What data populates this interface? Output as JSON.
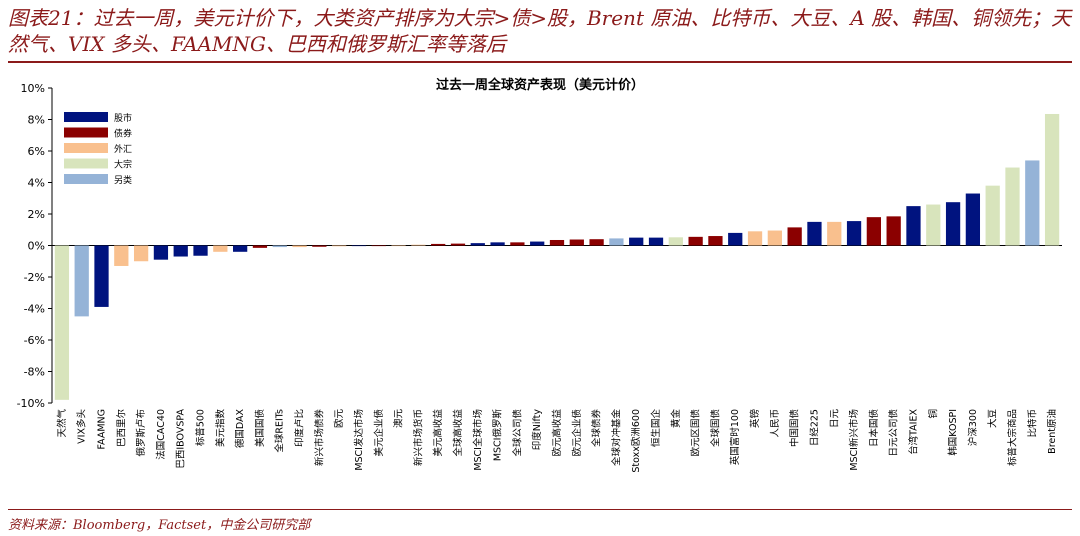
{
  "header": {
    "caption": "图表21：过去一周，美元计价下，大类资产排序为大宗>债>股，Brent 原油、比特币、大豆、A 股、韩国、铜领先；天然气、VIX 多头、FAAMNG、巴西和俄罗斯汇率等落后"
  },
  "footer": {
    "source": "资料来源：Bloomberg，Factset，中金公司研究部"
  },
  "colors": {
    "股市": "#00137f",
    "债券": "#8b0000",
    "外汇": "#f9c08e",
    "大宗": "#d8e4bc",
    "另类": "#95b3d7"
  },
  "chart_data": {
    "type": "bar",
    "title": "过去一周全球资产表现（美元计价）",
    "xlabel": "",
    "ylabel": "",
    "ylim": [
      -10,
      10
    ],
    "yticks": [
      "10%",
      "8%",
      "6%",
      "4%",
      "2%",
      "0%",
      "-2%",
      "-4%",
      "-6%",
      "-8%",
      "-10%"
    ],
    "grid": false,
    "legend_position": "top-left",
    "legend": [
      "股市",
      "债券",
      "外汇",
      "大宗",
      "另类"
    ],
    "categories": [
      "天然气",
      "VIX多头",
      "FAAMNG",
      "巴西里尔",
      "俄罗斯卢布",
      "法国CAC40",
      "巴西IBOVSPA",
      "标普500",
      "美元指数",
      "德国DAX",
      "美国国债",
      "全球REITs",
      "印度卢比",
      "新兴市场债券",
      "欧元",
      "MSCI发达市场",
      "美元企业债",
      "澳元",
      "新兴市场货币",
      "美元高收益",
      "全球高收益",
      "MSCI全球市场",
      "MSCI俄罗斯",
      "全球公司债",
      "印度Nifty",
      "欧元高收益",
      "欧元企业债",
      "全球债券",
      "全球对冲基金",
      "Stoxx欧洲600",
      "恒生国企",
      "黄金",
      "欧元区国债",
      "全球国债",
      "英国富时100",
      "英镑",
      "人民币",
      "中国国债",
      "日经225",
      "日元",
      "MSCI新兴市场",
      "日本国债",
      "日元公司债",
      "台湾TAIEX",
      "铜",
      "韩国KOSPI",
      "沪深300",
      "大豆",
      "标普大宗商品",
      "比特币",
      "Brent原油"
    ],
    "values": [
      -9.8,
      -4.5,
      -3.9,
      -1.3,
      -1.0,
      -0.9,
      -0.7,
      -0.65,
      -0.4,
      -0.4,
      -0.15,
      -0.1,
      -0.1,
      -0.08,
      -0.05,
      -0.03,
      -0.02,
      0.0,
      0.05,
      0.1,
      0.12,
      0.15,
      0.2,
      0.2,
      0.25,
      0.35,
      0.38,
      0.4,
      0.45,
      0.5,
      0.5,
      0.52,
      0.55,
      0.6,
      0.8,
      0.9,
      0.95,
      1.15,
      1.5,
      1.5,
      1.55,
      1.8,
      1.85,
      2.5,
      2.6,
      2.75,
      3.3,
      3.8,
      4.95,
      5.4,
      8.35
    ],
    "asset_class": [
      "大宗",
      "另类",
      "股市",
      "外汇",
      "外汇",
      "股市",
      "股市",
      "股市",
      "外汇",
      "股市",
      "债券",
      "另类",
      "外汇",
      "债券",
      "外汇",
      "股市",
      "债券",
      "外汇",
      "外汇",
      "债券",
      "债券",
      "股市",
      "股市",
      "债券",
      "股市",
      "债券",
      "债券",
      "债券",
      "另类",
      "股市",
      "股市",
      "大宗",
      "债券",
      "债券",
      "股市",
      "外汇",
      "外汇",
      "债券",
      "股市",
      "外汇",
      "股市",
      "债券",
      "债券",
      "股市",
      "大宗",
      "股市",
      "股市",
      "大宗",
      "大宗",
      "另类",
      "大宗"
    ]
  }
}
